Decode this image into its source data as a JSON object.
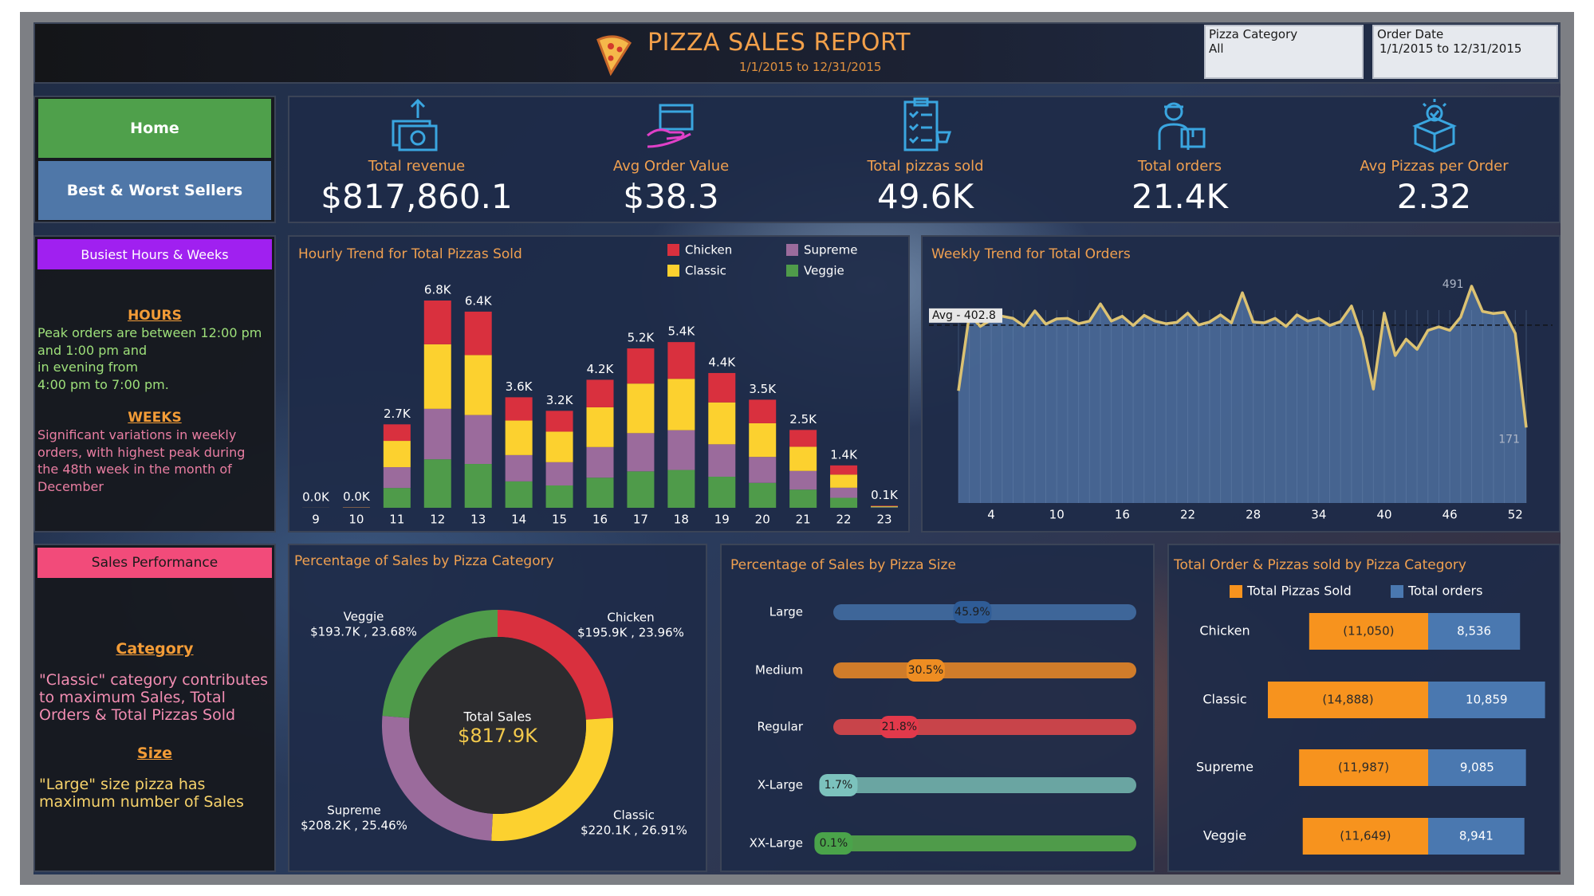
{
  "header": {
    "title": "PIZZA SALES REPORT",
    "subtitle": "1/1/2015 to 12/31/2015"
  },
  "filters": [
    {
      "label": "Pizza Category",
      "value": "All"
    },
    {
      "label": "Order Date",
      "value": "1/1/2015 to 12/31/2015"
    }
  ],
  "nav": [
    "Home",
    "Best & Worst Sellers"
  ],
  "kpis": [
    {
      "label": "Total revenue",
      "value": "$817,860.1"
    },
    {
      "label": "Avg Order Value",
      "value": "$38.3"
    },
    {
      "label": "Total pizzas sold",
      "value": "49.6K"
    },
    {
      "label": "Total orders",
      "value": "21.4K"
    },
    {
      "label": "Avg Pizzas per Order",
      "value": "2.32"
    }
  ],
  "busiest": {
    "title": "Busiest Hours & Weeks",
    "sections": [
      {
        "heading": "HOURS",
        "lines": [
          "Peak orders are between 12:00 pm",
          "and 1:00 pm and",
          "in evening from",
          "4:00 pm to 7:00 pm."
        ]
      },
      {
        "heading": "WEEKS",
        "lines": [
          "Significant variations in weekly",
          "orders, with highest peak during",
          "the 48th week in the month of",
          "December"
        ]
      }
    ]
  },
  "sales_performance": {
    "title": "Sales Performance",
    "sections": [
      {
        "heading": "Category",
        "lines": [
          "\"Classic\" category contributes",
          "to maximum Sales, Total",
          "Orders & Total Pizzas Sold"
        ]
      },
      {
        "heading": "Size",
        "lines": [
          "\"Large\" size pizza has",
          "maximum number of Sales"
        ]
      }
    ]
  },
  "chart_data": [
    {
      "type": "bar",
      "orientation": "vertical",
      "stacked": true,
      "title": "Hourly Trend for Total Pizzas Sold",
      "categories": [
        "9",
        "10",
        "11",
        "12",
        "13",
        "14",
        "15",
        "16",
        "17",
        "18",
        "19",
        "20",
        "21",
        "22",
        "23"
      ],
      "series": [
        {
          "name": "Chicken",
          "color": "#d9303e",
          "values": [
            1,
            4,
            540,
            1430,
            1420,
            760,
            680,
            900,
            1150,
            1200,
            960,
            770,
            550,
            300,
            14
          ]
        },
        {
          "name": "Classic",
          "color": "#fcd12f",
          "values": [
            1,
            6,
            860,
            2110,
            1960,
            1130,
            1000,
            1300,
            1620,
            1680,
            1370,
            1100,
            790,
            430,
            22
          ]
        },
        {
          "name": "Supreme",
          "color": "#9b6b9c",
          "values": [
            1,
            4,
            680,
            1650,
            1600,
            860,
            760,
            1000,
            1250,
            1300,
            1060,
            850,
            610,
            330,
            16
          ]
        },
        {
          "name": "Veggie",
          "color": "#4f9b4a",
          "values": [
            1,
            4,
            648,
            1586,
            1433,
            863,
            730,
            985,
            1191,
            1237,
            1016,
            814,
            595,
            326,
            16
          ]
        }
      ],
      "totals": [
        4,
        18,
        2728,
        6776,
        6413,
        3613,
        3170,
        4185,
        5211,
        5417,
        4406,
        3534,
        2545,
        1386,
        68
      ],
      "total_labels": [
        "0.0K",
        "0.0K",
        "2.7K",
        "6.8K",
        "6.4K",
        "3.6K",
        "3.2K",
        "4.2K",
        "5.2K",
        "5.4K",
        "4.4K",
        "3.5K",
        "2.5K",
        "1.4K",
        "0.1K"
      ]
    },
    {
      "type": "line",
      "area": true,
      "title": "Weekly Trend for Total Orders",
      "color": "#dcc272",
      "area_color": "#4d6f9e",
      "x": [
        1,
        2,
        3,
        4,
        5,
        6,
        7,
        8,
        9,
        10,
        11,
        12,
        13,
        14,
        15,
        16,
        17,
        18,
        19,
        20,
        21,
        22,
        23,
        24,
        25,
        26,
        27,
        28,
        29,
        30,
        31,
        32,
        33,
        34,
        35,
        36,
        37,
        38,
        39,
        40,
        41,
        42,
        43,
        44,
        45,
        46,
        47,
        48,
        49,
        50,
        51,
        52,
        53
      ],
      "values": [
        254,
        427,
        400,
        415,
        423,
        418,
        401,
        435,
        405,
        417,
        418,
        406,
        412,
        451,
        412,
        423,
        402,
        425,
        412,
        406,
        409,
        430,
        403,
        410,
        426,
        408,
        476,
        410,
        408,
        418,
        400,
        426,
        412,
        418,
        402,
        411,
        446,
        374,
        258,
        430,
        334,
        371,
        348,
        391,
        399,
        391,
        421,
        491,
        434,
        429,
        432,
        384,
        171
      ],
      "xticks": [
        4,
        10,
        16,
        22,
        28,
        34,
        40,
        46,
        52
      ],
      "reference_line": {
        "value": 402.8,
        "label": "Avg - 402.8"
      }
    },
    {
      "type": "donut",
      "title": "Percentage of Sales by Pizza Category",
      "categories": [
        "Chicken",
        "Classic",
        "Supreme",
        "Veggie"
      ],
      "values": [
        23.96,
        26.91,
        25.46,
        23.68
      ],
      "value_labels": [
        "$195.9K , 23.96%",
        "$220.1K , 26.91%",
        "$208.2K , 25.46%",
        "$193.7K , 23.68%"
      ],
      "colors": [
        "#d9303e",
        "#fcd12f",
        "#9b6b9c",
        "#4f9b4a"
      ],
      "center_title": "Total Sales",
      "center_value": "$817.9K"
    },
    {
      "type": "progress",
      "title": "Percentage of Sales by Pizza Size",
      "categories": [
        "Large",
        "Medium",
        "Regular",
        "X-Large",
        "XX-Large"
      ],
      "values": [
        45.9,
        30.5,
        21.8,
        1.7,
        0.1
      ],
      "value_labels": [
        "45.9%",
        "30.5%",
        "21.8%",
        "1.7%",
        "0.1%"
      ],
      "colors": [
        "#3e6699",
        "#d07c2a",
        "#c8444a",
        "#6aa5a2",
        "#4f9b4a"
      ],
      "bubble_colors": [
        "#2f5c96",
        "#ee8d22",
        "#e2394b",
        "#7cc2bd",
        "#4aa34a"
      ]
    },
    {
      "type": "bar",
      "orientation": "horizontal",
      "title": "Total Order & Pizzas sold by Pizza Category",
      "categories": [
        "Chicken",
        "Classic",
        "Supreme",
        "Veggie"
      ],
      "series": [
        {
          "name": "Total Pizzas Sold",
          "color": "#f7931e",
          "values": [
            11050,
            14888,
            11987,
            11649
          ],
          "value_labels": [
            "(11,050)",
            "(14,888)",
            "(11,987)",
            "(11,649)"
          ]
        },
        {
          "name": "Total orders",
          "color": "#4a78b0",
          "values": [
            8536,
            10859,
            9085,
            8941
          ],
          "value_labels": [
            "8,536",
            "10,859",
            "9,085",
            "8,941"
          ]
        }
      ]
    }
  ]
}
